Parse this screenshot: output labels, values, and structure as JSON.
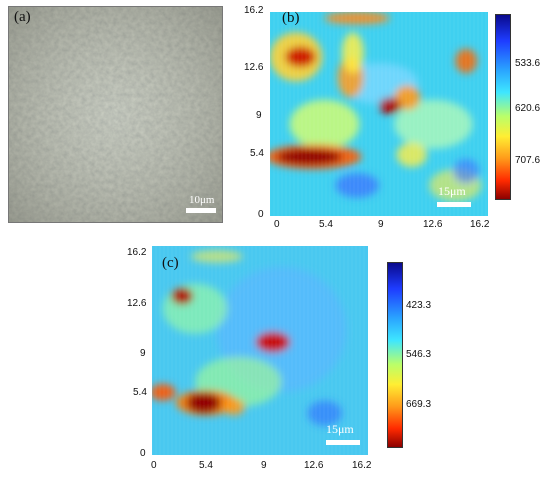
{
  "panel_a": {
    "letter": "(a)",
    "scale_label": "10μm"
  },
  "panel_b": {
    "letter": "(b)",
    "scale_label": "15μm",
    "y_ticks": [
      "16.2",
      "12.6",
      "9",
      "5.4",
      "0"
    ],
    "x_ticks": [
      "0",
      "5.4",
      "9",
      "12.6",
      "16.2"
    ],
    "colorbar_labels": [
      "533.6",
      "620.6",
      "707.6"
    ]
  },
  "panel_c": {
    "letter": "(c)",
    "scale_label": "15μm",
    "y_ticks": [
      "16.2",
      "12.6",
      "9",
      "5.4",
      "0"
    ],
    "x_ticks": [
      "0",
      "5.4",
      "9",
      "12.6",
      "16.2"
    ],
    "colorbar_labels": [
      "423.3",
      "546.3",
      "669.3"
    ]
  },
  "colors": {
    "low": "#1f24a8",
    "mid": "#39e6ff",
    "high": "#a00000"
  }
}
